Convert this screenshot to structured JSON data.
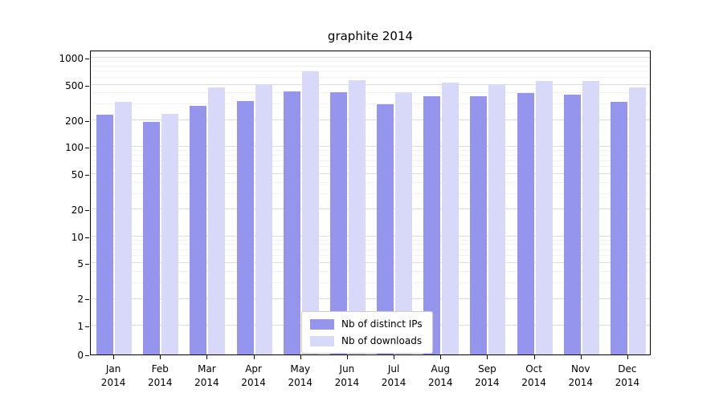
{
  "title": "graphite 2014",
  "chart_data": {
    "type": "bar",
    "title": "graphite 2014",
    "categories": [
      "Jan 2014",
      "Feb 2014",
      "Mar 2014",
      "Apr 2014",
      "May 2014",
      "Jun 2014",
      "Jul 2014",
      "Aug 2014",
      "Sep 2014",
      "Oct 2014",
      "Nov 2014",
      "Dec 2014"
    ],
    "series": [
      {
        "name": "Nb of distinct IPs",
        "color": "#9595ee",
        "values": [
          230,
          190,
          290,
          330,
          420,
          410,
          300,
          370,
          370,
          400,
          390,
          320
        ]
      },
      {
        "name": "Nb of downloads",
        "color": "#d8d8f8",
        "values": [
          320,
          235,
          470,
          510,
          700,
          560,
          410,
          530,
          510,
          550,
          550,
          470
        ]
      }
    ],
    "xlabel": "",
    "ylabel": "",
    "yscale": "symlog",
    "yticks": [
      0,
      1,
      2,
      5,
      10,
      20,
      50,
      100,
      200,
      500,
      1000
    ],
    "ylim": [
      0,
      1250
    ],
    "grid": true,
    "legend_position": "lower center"
  }
}
